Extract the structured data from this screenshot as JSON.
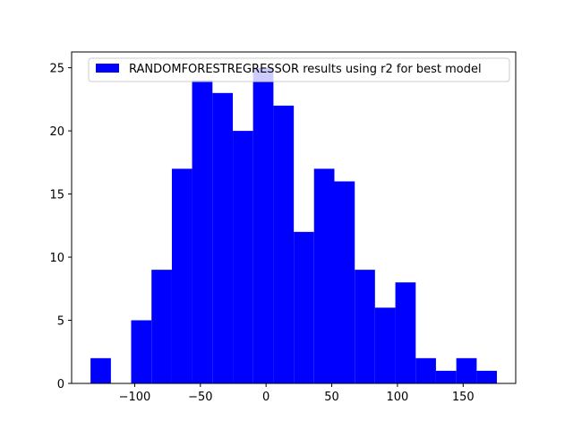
{
  "chart_data": {
    "type": "bar",
    "title": "",
    "xlabel": "",
    "ylabel": "",
    "xlim": [
      -148,
      190
    ],
    "ylim": [
      0,
      26.25
    ],
    "grid": false,
    "legend_placement": "top-right",
    "bar_color": "#0000ff",
    "xticks": [
      -100,
      -50,
      0,
      50,
      100,
      150
    ],
    "yticks": [
      0,
      5,
      10,
      15,
      20,
      25
    ],
    "series": [
      {
        "name": "RANDOMFORESTREGRESSOR results using r2 for best model",
        "bin_edges": [
          -133.6,
          -118.1,
          -102.7,
          -87.2,
          -71.7,
          -56.3,
          -40.8,
          -25.3,
          -9.9,
          5.6,
          21.1,
          36.5,
          52.0,
          67.5,
          82.9,
          98.4,
          113.9,
          129.3,
          144.8,
          160.3,
          175.7
        ],
        "counts": [
          2,
          0,
          5,
          9,
          17,
          24,
          23,
          20,
          25,
          22,
          12,
          17,
          16,
          9,
          6,
          8,
          2,
          1,
          2,
          1
        ]
      }
    ]
  }
}
